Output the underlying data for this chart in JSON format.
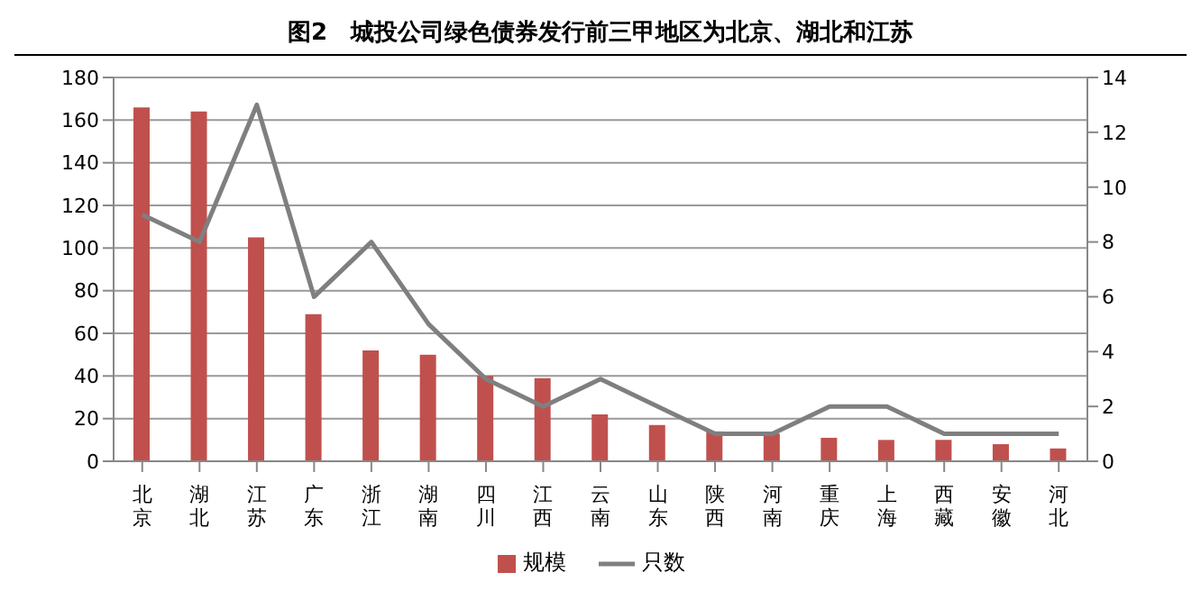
{
  "chart_data": {
    "type": "bar",
    "title": "图2　城投公司绿色债券发行前三甲地区为北京、湖北和江苏",
    "categories": [
      "北京",
      "湖北",
      "江苏",
      "广东",
      "浙江",
      "湖南",
      "四川",
      "江西",
      "云南",
      "山东",
      "陕西",
      "河南",
      "重庆",
      "上海",
      "西藏",
      "安徽",
      "河北"
    ],
    "series": [
      {
        "name": "规模",
        "color": "#c0504d",
        "values": [
          166,
          164,
          105,
          69,
          52,
          50,
          40,
          39,
          22,
          17,
          14,
          13,
          11,
          10,
          10,
          8,
          6
        ]
      },
      {
        "name": "只数",
        "type": "line",
        "axis": "y2",
        "color": "#7f7f7f",
        "marker": "none",
        "values": [
          9,
          8,
          13,
          6,
          8,
          5,
          3,
          2,
          3,
          2,
          1,
          1,
          2,
          2,
          1,
          1,
          1
        ]
      }
    ],
    "ylim": [
      0,
      180
    ],
    "yticks": [
      0,
      20,
      40,
      60,
      80,
      100,
      120,
      140,
      160,
      180
    ],
    "y2lim": [
      0,
      14
    ],
    "y2ticks": [
      0,
      2,
      4,
      6,
      8,
      10,
      12,
      14
    ],
    "grid": "y",
    "legend": "bottom"
  }
}
